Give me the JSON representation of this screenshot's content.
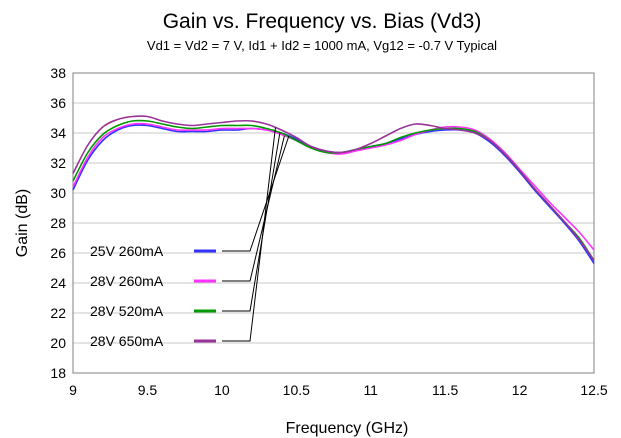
{
  "chart_data": {
    "type": "line",
    "title": "Gain vs. Frequency vs. Bias (Vd3)",
    "subtitle": "Vd1 = Vd2 = 7 V, Id1 + Id2 = 1000 mA, Vg12 = -0.7 V Typical",
    "xlabel": "Frequency (GHz)",
    "ylabel": "Gain (dB)",
    "xlim": [
      9,
      12.5
    ],
    "ylim": [
      18,
      38
    ],
    "xticks": [
      9,
      9.5,
      10,
      10.5,
      11,
      11.5,
      12,
      12.5
    ],
    "xtick_labels": [
      "9",
      "9.5",
      "10",
      "10.5",
      "11",
      "11.5",
      "12",
      "12.5"
    ],
    "yticks": [
      18,
      20,
      22,
      24,
      26,
      28,
      30,
      32,
      34,
      36,
      38
    ],
    "ytick_labels": [
      "18",
      "20",
      "22",
      "24",
      "26",
      "28",
      "30",
      "32",
      "34",
      "36",
      "38"
    ],
    "grid": {
      "y": true,
      "x": false
    },
    "legend_placement": "bottom-left, with leader lines to curves",
    "series": [
      {
        "name": "25V 260mA",
        "color": "#3333ff",
        "x": [
          9,
          9.1,
          9.2,
          9.3,
          9.4,
          9.5,
          9.6,
          9.7,
          9.8,
          9.9,
          10,
          10.1,
          10.2,
          10.3,
          10.4,
          10.5,
          10.6,
          10.7,
          10.8,
          10.9,
          11,
          11.1,
          11.2,
          11.3,
          11.4,
          11.5,
          11.6,
          11.7,
          11.8,
          11.9,
          12,
          12.1,
          12.2,
          12.3,
          12.4,
          12.5
        ],
        "y": [
          30.2,
          32.2,
          33.5,
          34.2,
          34.5,
          34.5,
          34.3,
          34.1,
          34.1,
          34.1,
          34.2,
          34.2,
          34.3,
          34.2,
          34.0,
          33.6,
          33.1,
          32.8,
          32.7,
          32.9,
          33.1,
          33.3,
          33.6,
          33.9,
          34.1,
          34.2,
          34.2,
          34.0,
          33.4,
          32.5,
          31.4,
          30.2,
          29.1,
          28.0,
          26.8,
          25.3
        ]
      },
      {
        "name": "28V 260mA",
        "color": "#ff33ff",
        "x": [
          9,
          9.1,
          9.2,
          9.3,
          9.4,
          9.5,
          9.6,
          9.7,
          9.8,
          9.9,
          10,
          10.1,
          10.2,
          10.3,
          10.4,
          10.5,
          10.6,
          10.7,
          10.8,
          10.9,
          11,
          11.1,
          11.2,
          11.3,
          11.4,
          11.5,
          11.6,
          11.7,
          11.8,
          11.9,
          12,
          12.1,
          12.2,
          12.3,
          12.4,
          12.5
        ],
        "y": [
          30.4,
          32.4,
          33.7,
          34.3,
          34.6,
          34.6,
          34.4,
          34.2,
          34.2,
          34.2,
          34.3,
          34.3,
          34.3,
          34.2,
          33.9,
          33.5,
          33.0,
          32.7,
          32.6,
          32.8,
          33.0,
          33.2,
          33.5,
          33.9,
          34.2,
          34.4,
          34.4,
          34.2,
          33.6,
          32.7,
          31.6,
          30.5,
          29.4,
          28.4,
          27.4,
          26.2
        ]
      },
      {
        "name": "28V 520mA",
        "color": "#009900",
        "x": [
          9,
          9.1,
          9.2,
          9.3,
          9.4,
          9.5,
          9.6,
          9.7,
          9.8,
          9.9,
          10,
          10.1,
          10.2,
          10.3,
          10.4,
          10.5,
          10.6,
          10.7,
          10.8,
          10.9,
          11,
          11.1,
          11.2,
          11.3,
          11.4,
          11.5,
          11.6,
          11.7,
          11.8,
          11.9,
          12,
          12.1,
          12.2,
          12.3,
          12.4,
          12.5
        ],
        "y": [
          30.8,
          32.7,
          33.9,
          34.5,
          34.8,
          34.8,
          34.6,
          34.4,
          34.3,
          34.4,
          34.5,
          34.5,
          34.5,
          34.3,
          34.0,
          33.5,
          33.0,
          32.7,
          32.7,
          32.9,
          33.1,
          33.3,
          33.7,
          34.0,
          34.2,
          34.3,
          34.3,
          34.1,
          33.5,
          32.6,
          31.5,
          30.3,
          29.2,
          28.1,
          27.0,
          25.5
        ]
      },
      {
        "name": "28V 650mA",
        "color": "#993399",
        "x": [
          9,
          9.1,
          9.2,
          9.3,
          9.4,
          9.5,
          9.6,
          9.7,
          9.8,
          9.9,
          10,
          10.1,
          10.2,
          10.3,
          10.4,
          10.5,
          10.6,
          10.7,
          10.8,
          10.9,
          11,
          11.1,
          11.2,
          11.3,
          11.4,
          11.5,
          11.6,
          11.7,
          11.8,
          11.9,
          12,
          12.1,
          12.2,
          12.3,
          12.4,
          12.5
        ],
        "y": [
          31.3,
          33.2,
          34.4,
          34.9,
          35.1,
          35.1,
          34.8,
          34.6,
          34.5,
          34.6,
          34.7,
          34.8,
          34.8,
          34.6,
          34.2,
          33.7,
          33.1,
          32.8,
          32.7,
          32.9,
          33.3,
          33.8,
          34.3,
          34.6,
          34.5,
          34.3,
          34.2,
          34.0,
          33.5,
          32.6,
          31.5,
          30.3,
          29.2,
          28.1,
          26.9,
          25.5
        ]
      }
    ]
  }
}
